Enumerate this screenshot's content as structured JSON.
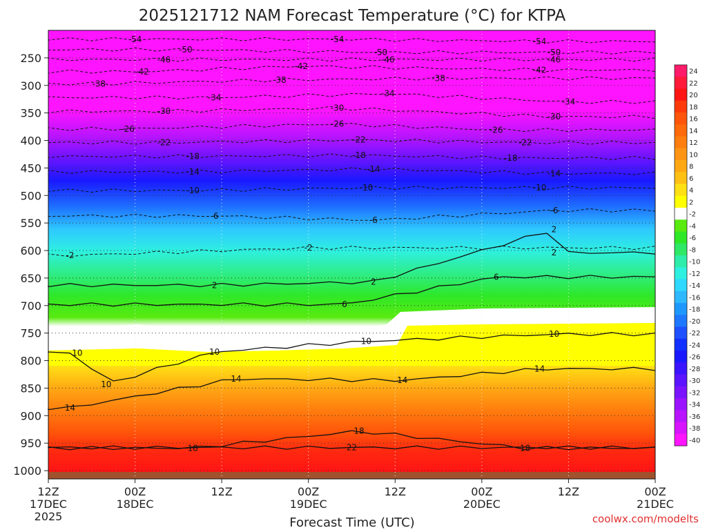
{
  "chart_data": {
    "type": "heatmap",
    "title": "2025121712 NAM Forecast Temperature (°C) for KTPA",
    "xlabel": "Forecast Time (UTC)",
    "ylabel": "",
    "credit": "coolwx.com/modelts",
    "x_ticks": [
      {
        "hours": 0,
        "line1": "12Z",
        "line2": "17DEC",
        "line3": "2025"
      },
      {
        "hours": 12,
        "line1": "00Z",
        "line2": "18DEC",
        "line3": ""
      },
      {
        "hours": 24,
        "line1": "12Z",
        "line2": "",
        "line3": ""
      },
      {
        "hours": 36,
        "line1": "00Z",
        "line2": "19DEC",
        "line3": ""
      },
      {
        "hours": 48,
        "line1": "12Z",
        "line2": "",
        "line3": ""
      },
      {
        "hours": 60,
        "line1": "00Z",
        "line2": "20DEC",
        "line3": ""
      },
      {
        "hours": 72,
        "line1": "12Z",
        "line2": "",
        "line3": ""
      },
      {
        "hours": 84,
        "line1": "00Z",
        "line2": "21DEC",
        "line3": ""
      }
    ],
    "xlim": [
      0,
      84
    ],
    "y_ticks": [
      250,
      300,
      350,
      400,
      450,
      500,
      550,
      600,
      650,
      700,
      750,
      800,
      850,
      900,
      950,
      1000
    ],
    "ylim_hpa": [
      200,
      1015
    ],
    "colorbar": {
      "labels": [
        "24",
        "22",
        "20",
        "18",
        "16",
        "14",
        "12",
        "10",
        "8",
        "6",
        "4",
        "2",
        "-2",
        "-4",
        "-6",
        "-8",
        "-10",
        "-12",
        "-14",
        "-16",
        "-18",
        "-20",
        "-22",
        "-24",
        "-26",
        "-28",
        "-30",
        "-32",
        "-34",
        "-36",
        "-38",
        "-40"
      ],
      "colors": [
        "#ff1a6a",
        "#ff1a3a",
        "#ff1414",
        "#ff3a0a",
        "#ff550a",
        "#ff6a0a",
        "#ff7e0e",
        "#ff9314",
        "#ffa814",
        "#ffc014",
        "#ffe014",
        "#ffff00",
        "#ffffff",
        "#59ea10",
        "#2ee828",
        "#2ee866",
        "#2eedaa",
        "#2ef0e0",
        "#2ed8ff",
        "#2eb8ff",
        "#1e98ff",
        "#1e78ff",
        "#1e50ff",
        "#1230ff",
        "#1a18ff",
        "#3a14ff",
        "#5a14ff",
        "#7a14ff",
        "#9a14ff",
        "#b814ff",
        "#d814ff",
        "#ff14ff"
      ]
    },
    "contour_labels": [
      {
        "text": "-54",
        "h": 12,
        "p": 216
      },
      {
        "text": "-54",
        "h": 40,
        "p": 216
      },
      {
        "text": "-54",
        "h": 68,
        "p": 220
      },
      {
        "text": "-50",
        "h": 19,
        "p": 235
      },
      {
        "text": "-50",
        "h": 46,
        "p": 240
      },
      {
        "text": "-50",
        "h": 70,
        "p": 240
      },
      {
        "text": "-46",
        "h": 16,
        "p": 253
      },
      {
        "text": "-46",
        "h": 47,
        "p": 253
      },
      {
        "text": "-46",
        "h": 70,
        "p": 253
      },
      {
        "text": "-42",
        "h": 13,
        "p": 275
      },
      {
        "text": "-42",
        "h": 35,
        "p": 265
      },
      {
        "text": "-42",
        "h": 68,
        "p": 272
      },
      {
        "text": "-38",
        "h": 7,
        "p": 297
      },
      {
        "text": "-38",
        "h": 32,
        "p": 290
      },
      {
        "text": "-38",
        "h": 54,
        "p": 287
      },
      {
        "text": "-34",
        "h": 23,
        "p": 322
      },
      {
        "text": "-34",
        "h": 47,
        "p": 315
      },
      {
        "text": "-34",
        "h": 72,
        "p": 330
      },
      {
        "text": "-30",
        "h": 16,
        "p": 347
      },
      {
        "text": "-30",
        "h": 40,
        "p": 341
      },
      {
        "text": "-30",
        "h": 70,
        "p": 357
      },
      {
        "text": "-26",
        "h": 11,
        "p": 379
      },
      {
        "text": "-26",
        "h": 40,
        "p": 370
      },
      {
        "text": "-26",
        "h": 62,
        "p": 381
      },
      {
        "text": "-22",
        "h": 16,
        "p": 404
      },
      {
        "text": "-22",
        "h": 43,
        "p": 399
      },
      {
        "text": "-22",
        "h": 66,
        "p": 404
      },
      {
        "text": "-18",
        "h": 20,
        "p": 429
      },
      {
        "text": "-18",
        "h": 43,
        "p": 427
      },
      {
        "text": "-18",
        "h": 64,
        "p": 432
      },
      {
        "text": "-14",
        "h": 20,
        "p": 457
      },
      {
        "text": "-14",
        "h": 45,
        "p": 452
      },
      {
        "text": "-14",
        "h": 70,
        "p": 460
      },
      {
        "text": "-10",
        "h": 20,
        "p": 491
      },
      {
        "text": "-10",
        "h": 44,
        "p": 486
      },
      {
        "text": "-10",
        "h": 68,
        "p": 486
      },
      {
        "text": "-6",
        "h": 23,
        "p": 537
      },
      {
        "text": "-6",
        "h": 45,
        "p": 545
      },
      {
        "text": "-6",
        "h": 70,
        "p": 527
      },
      {
        "text": "-2",
        "h": 3,
        "p": 609
      },
      {
        "text": "-2",
        "h": 36,
        "p": 595
      },
      {
        "text": "2",
        "h": 70,
        "p": 562
      },
      {
        "text": "2",
        "h": 70,
        "p": 604
      },
      {
        "text": "2",
        "h": 23,
        "p": 663
      },
      {
        "text": "2",
        "h": 45,
        "p": 657
      },
      {
        "text": "6",
        "h": 62,
        "p": 648
      },
      {
        "text": "6",
        "h": 41,
        "p": 698
      },
      {
        "text": "10",
        "h": 4,
        "p": 786
      },
      {
        "text": "10",
        "h": 23,
        "p": 784
      },
      {
        "text": "10",
        "h": 44,
        "p": 765
      },
      {
        "text": "10",
        "h": 8,
        "p": 843
      },
      {
        "text": "10",
        "h": 70,
        "p": 752
      },
      {
        "text": "14",
        "h": 26,
        "p": 833
      },
      {
        "text": "14",
        "h": 49,
        "p": 836
      },
      {
        "text": "14",
        "h": 68,
        "p": 815
      },
      {
        "text": "14",
        "h": 3,
        "p": 886
      },
      {
        "text": "18",
        "h": 20,
        "p": 959
      },
      {
        "text": "18",
        "h": 43,
        "p": 928
      },
      {
        "text": "18",
        "h": 66,
        "p": 959
      },
      {
        "text": "22",
        "h": 42,
        "p": 958
      }
    ]
  }
}
